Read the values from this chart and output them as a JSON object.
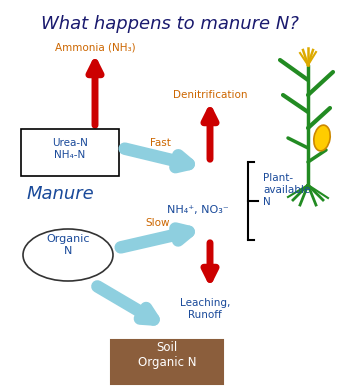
{
  "title": "What happens to manure N?",
  "title_color": "#1a1a6e",
  "title_fontsize": 13,
  "bg_color": "#ffffff",
  "text_color_blue": "#1a4a9a",
  "text_color_orange": "#cc6600",
  "arrow_red": "#cc0000",
  "arrow_cyan": "#8ecfdf",
  "box_soil_color": "#8B5E3C",
  "box_soil_text": "Soil\nOrganic N",
  "box_urea_text": "Urea-N\nNH₄-N",
  "label_ammonia": "Ammonia (NH₃)",
  "label_denitrif": "Denitrification",
  "label_manure": "Manure",
  "label_organic": "Organic\nN",
  "label_nh4no3": "NH₄⁺, NO₃⁻",
  "label_plant": "Plant-\navailable\nN",
  "label_fast": "Fast",
  "label_slow": "Slow",
  "label_leaching": "Leaching,\nRunoff"
}
